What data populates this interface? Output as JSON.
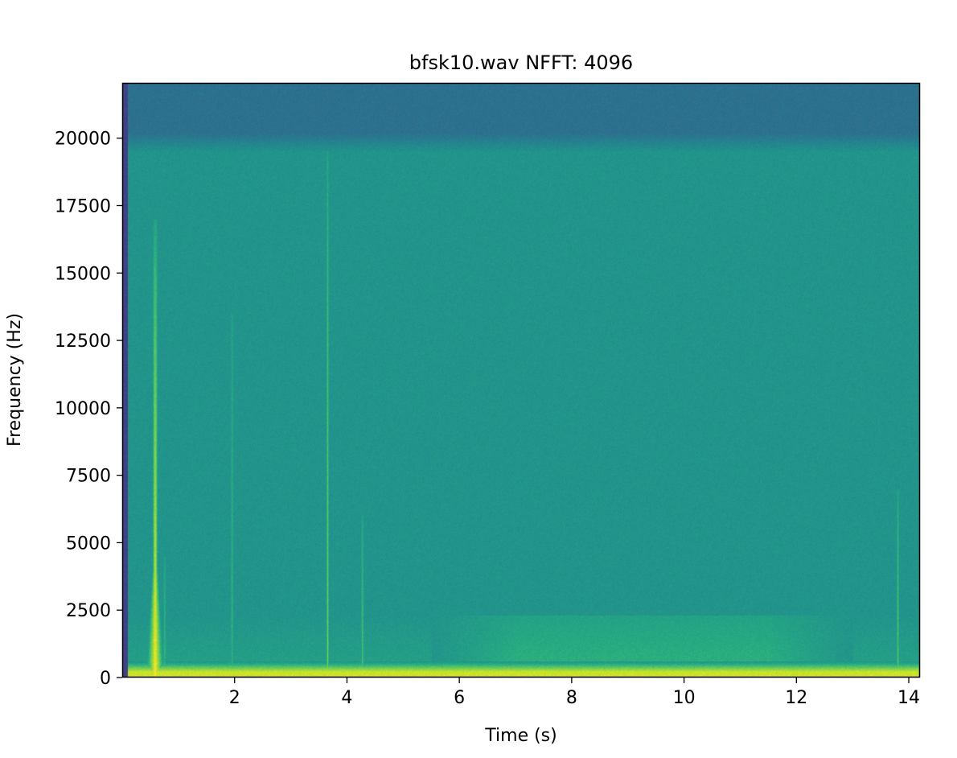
{
  "chart_data": {
    "type": "heatmap",
    "title": "bfsk10.wav  NFFT: 4096",
    "xlabel": "Time (s)",
    "ylabel": "Frequency (Hz)",
    "xlim": [
      0,
      14.2
    ],
    "ylim": [
      0,
      22050
    ],
    "x_ticks": [
      2,
      4,
      6,
      8,
      10,
      12,
      14
    ],
    "y_ticks": [
      0,
      2500,
      5000,
      7500,
      10000,
      12500,
      15000,
      17500,
      20000
    ],
    "x_tick_labels": [
      "2",
      "4",
      "6",
      "8",
      "10",
      "12",
      "14"
    ],
    "y_tick_labels": [
      "0",
      "2500",
      "5000",
      "7500",
      "10000",
      "12500",
      "15000",
      "17500",
      "20000"
    ],
    "colormap": "viridis",
    "grid": false,
    "background_level": 0.52,
    "features": [
      {
        "kind": "low_freq_band",
        "freq_max": 600,
        "time_start": 0.1,
        "time_end": 14.2,
        "level": 0.93
      },
      {
        "kind": "mid_band",
        "freq_min": 600,
        "freq_max": 2300,
        "time_start": 5.5,
        "time_end": 13.0,
        "level": 0.64
      },
      {
        "kind": "top_band",
        "freq_min": 19500,
        "freq_max": 22050,
        "level": 0.38
      },
      {
        "kind": "left_edge_low",
        "time_start": 0.0,
        "time_end": 0.1,
        "level": 0.2
      },
      {
        "kind": "burst",
        "time": 0.58,
        "freq_max": 17000,
        "strength": 0.95
      },
      {
        "kind": "burst",
        "time": 0.75,
        "freq_max": 4500,
        "strength": 0.65
      },
      {
        "kind": "burst",
        "time": 1.95,
        "freq_max": 13500,
        "strength": 0.62
      },
      {
        "kind": "burst",
        "time": 3.65,
        "freq_max": 19500,
        "strength": 0.75
      },
      {
        "kind": "burst",
        "time": 4.27,
        "freq_max": 6000,
        "strength": 0.7
      },
      {
        "kind": "burst",
        "time": 13.8,
        "freq_max": 7000,
        "strength": 0.7
      }
    ]
  }
}
